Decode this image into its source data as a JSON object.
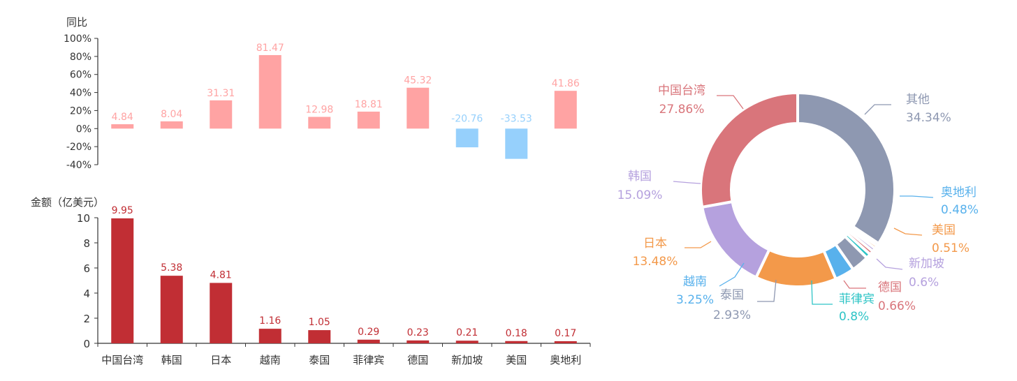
{
  "chart_data": [
    {
      "type": "bar",
      "ylabel": "同比",
      "categories": [
        "中国台湾",
        "韩国",
        "日本",
        "越南",
        "泰国",
        "菲律宾",
        "德国",
        "新加坡",
        "美国",
        "奥地利"
      ],
      "values": [
        4.84,
        8.04,
        31.31,
        81.47,
        12.98,
        18.81,
        45.32,
        -20.76,
        -33.53,
        41.86
      ],
      "data_labels": [
        "4.84",
        "8.04",
        "31.31",
        "81.47",
        "12.98",
        "18.81",
        "45.32",
        "-20.76",
        "-33.53",
        "41.86"
      ],
      "ylim": [
        -40,
        100
      ],
      "yticks": [
        -40,
        -20,
        0,
        20,
        40,
        60,
        80,
        100
      ],
      "ytick_labels": [
        "-40%",
        "-20%",
        "0%",
        "20%",
        "40%",
        "60%",
        "80%",
        "100%"
      ],
      "positive_color": "#ffa3a3",
      "negative_color": "#96d0fc",
      "grid": false
    },
    {
      "type": "bar",
      "ylabel": "金额（亿美元）",
      "categories": [
        "中国台湾",
        "韩国",
        "日本",
        "越南",
        "泰国",
        "菲律宾",
        "德国",
        "新加坡",
        "美国",
        "奥地利"
      ],
      "values": [
        9.95,
        5.38,
        4.81,
        1.16,
        1.05,
        0.29,
        0.23,
        0.21,
        0.18,
        0.17
      ],
      "data_labels": [
        "9.95",
        "5.38",
        "4.81",
        "1.16",
        "1.05",
        "0.29",
        "0.23",
        "0.21",
        "0.18",
        "0.17"
      ],
      "ylim": [
        0,
        10
      ],
      "yticks": [
        0,
        2,
        4,
        6,
        8,
        10
      ],
      "ytick_labels": [
        "0",
        "2",
        "4",
        "6",
        "8",
        "10"
      ],
      "bar_color": "#c12e34",
      "grid": false
    },
    {
      "type": "pie",
      "style": "donut",
      "slices": [
        {
          "name": "其他",
          "value": 34.34,
          "label": "34.34%",
          "color": "#8e98b1"
        },
        {
          "name": "奥地利",
          "value": 0.48,
          "label": "0.48%",
          "color": "#58b1ec"
        },
        {
          "name": "美国",
          "value": 0.51,
          "label": "0.51%",
          "color": "#f3994a"
        },
        {
          "name": "新加坡",
          "value": 0.6,
          "label": "0.6%",
          "color": "#b5a1de"
        },
        {
          "name": "德国",
          "value": 0.66,
          "label": "0.66%",
          "color": "#d9757b"
        },
        {
          "name": "菲律宾",
          "value": 0.8,
          "label": "0.8%",
          "color": "#2ec4c6"
        },
        {
          "name": "泰国",
          "value": 2.93,
          "label": "2.93%",
          "color": "#8e98b1"
        },
        {
          "name": "越南",
          "value": 3.25,
          "label": "3.25%",
          "color": "#58b1ec"
        },
        {
          "name": "日本",
          "value": 13.48,
          "label": "13.48%",
          "color": "#f3994a"
        },
        {
          "name": "韩国",
          "value": 15.09,
          "label": "15.09%",
          "color": "#b5a1de"
        },
        {
          "name": "中国台湾",
          "value": 27.86,
          "label": "27.86%",
          "color": "#d9757b"
        }
      ]
    }
  ]
}
